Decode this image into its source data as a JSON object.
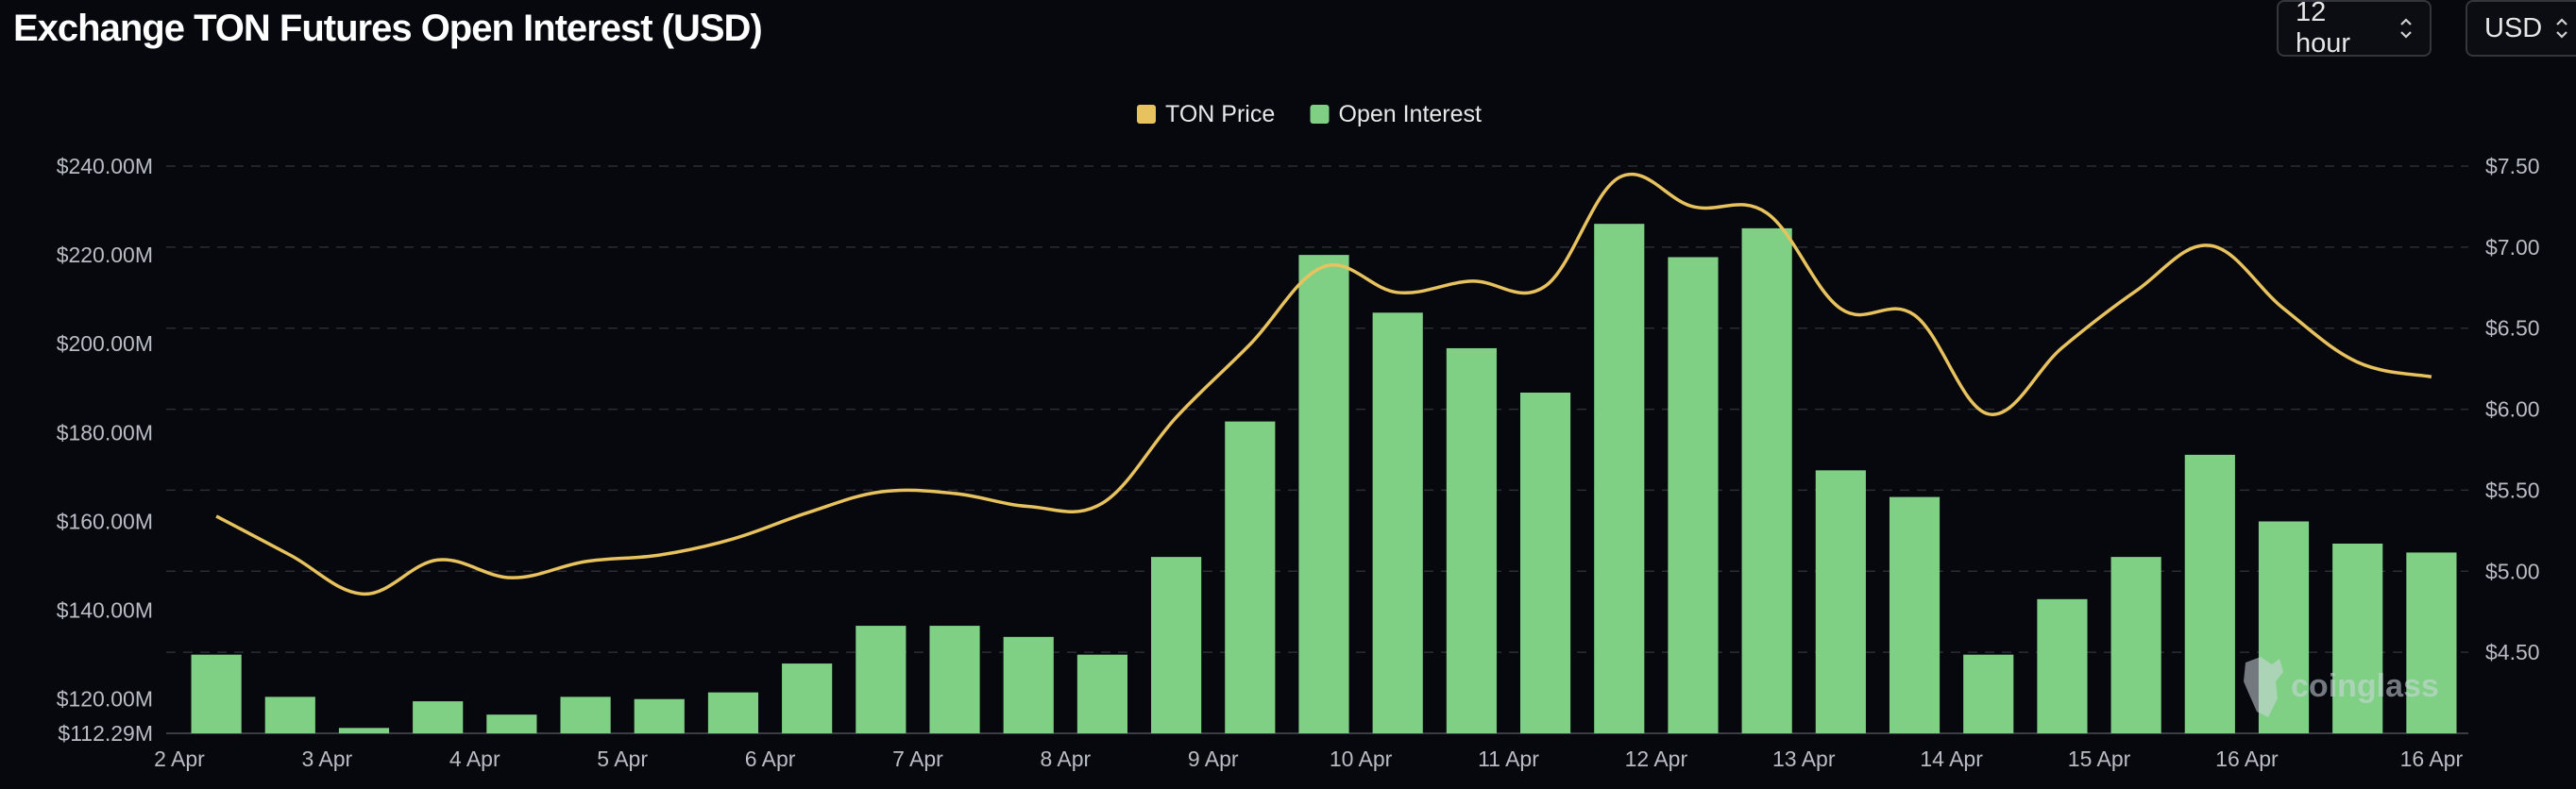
{
  "header": {
    "title": "Exchange TON Futures Open Interest (USD)",
    "interval_label": "12 hour",
    "currency_label": "USD"
  },
  "icons": {
    "interval_selector": "chevron-updown-icon",
    "currency_selector": "chevron-updown-icon",
    "watermark": "coinglass-logo-icon"
  },
  "watermark": {
    "text": "coinglass"
  },
  "colors": {
    "background": "#06080d",
    "bars": "#7fd085",
    "price_line": "#e8c25e",
    "grid": "#2a2d34"
  },
  "chart_data": {
    "type": "bar",
    "legend": [
      {
        "name": "TON Price",
        "color": "#e8c25e"
      },
      {
        "name": "Open Interest",
        "color": "#7fd085"
      }
    ],
    "legend_position": "top-center",
    "grid": true,
    "x_tick_labels": [
      "2 Apr",
      "3 Apr",
      "4 Apr",
      "5 Apr",
      "6 Apr",
      "7 Apr",
      "8 Apr",
      "9 Apr",
      "10 Apr",
      "11 Apr",
      "12 Apr",
      "13 Apr",
      "14 Apr",
      "15 Apr",
      "16 Apr",
      "16 Apr"
    ],
    "y_left": {
      "ticks": [
        "$240.00M",
        "$220.00M",
        "$200.00M",
        "$180.00M",
        "$160.00M",
        "$140.00M",
        "$120.00M",
        "$112.29M"
      ],
      "tick_values": [
        240,
        220,
        200,
        180,
        160,
        140,
        120,
        112.29
      ],
      "range": [
        112.29,
        240
      ],
      "unit": "USD millions"
    },
    "y_right": {
      "ticks": [
        "$7.50",
        "$7.00",
        "$6.50",
        "$6.00",
        "$5.50",
        "$5.00",
        "$4.50"
      ],
      "tick_values": [
        7.5,
        7.0,
        6.5,
        6.0,
        5.5,
        5.0,
        4.5
      ],
      "range": [
        4.0,
        7.5
      ]
    },
    "series": [
      {
        "name": "Open Interest",
        "type": "bar",
        "axis": "left",
        "values": [
          130,
          120.5,
          113.5,
          119.5,
          116.5,
          120.5,
          120,
          121.5,
          128,
          136.5,
          136.5,
          134,
          130,
          152,
          182.5,
          220,
          207,
          199,
          189,
          227,
          219.5,
          226,
          171.5,
          165.5,
          130,
          142.5,
          152,
          175,
          160,
          155,
          153
        ]
      },
      {
        "name": "TON Price",
        "type": "line",
        "axis": "right",
        "values": [
          5.34,
          5.1,
          4.86,
          5.07,
          4.96,
          5.06,
          5.1,
          5.2,
          5.36,
          5.49,
          5.48,
          5.4,
          5.42,
          5.95,
          6.4,
          6.88,
          6.72,
          6.79,
          6.76,
          7.43,
          7.25,
          7.21,
          6.62,
          6.58,
          5.97,
          6.38,
          6.73,
          7.01,
          6.62,
          6.29,
          6.2
        ]
      }
    ]
  }
}
